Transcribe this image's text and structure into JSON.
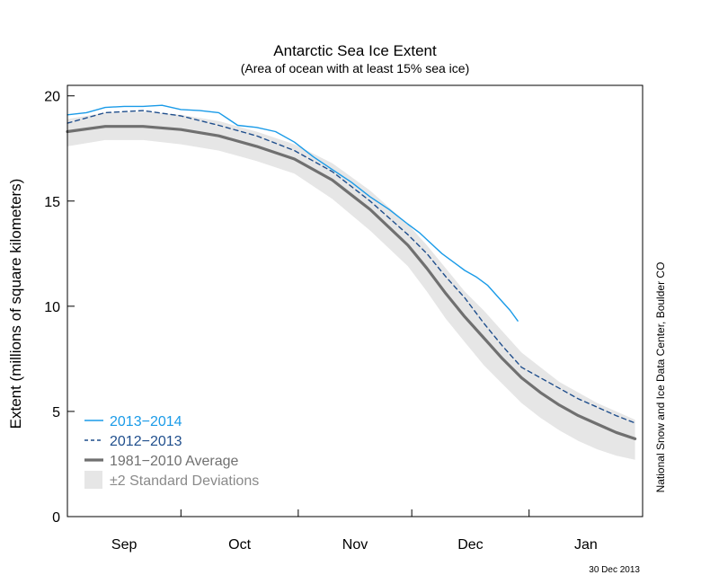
{
  "chart_data": {
    "type": "line",
    "title": "Antarctic Sea Ice Extent",
    "subtitle": "(Area of ocean with at least 15% sea ice)",
    "ylabel": "Extent (millions of square kilometers)",
    "xlabel": "",
    "ylim": [
      0,
      20.5
    ],
    "y_ticks": [
      0,
      5,
      10,
      15,
      20
    ],
    "x_range": [
      "2013-09-01",
      "2014-01-31"
    ],
    "months": [
      "Sep",
      "Oct",
      "Nov",
      "Dec",
      "Jan"
    ],
    "month_starts": [
      "2013-09-01",
      "2013-10-01",
      "2013-11-01",
      "2013-12-01",
      "2014-01-01"
    ],
    "grid": false,
    "legend_position": "bottom-left",
    "credit": "National Snow and Ice Data Center, Boulder CO",
    "date_stamp": "30 Dec 2013",
    "series": [
      {
        "name": "2013−2014",
        "style": "solid-thin",
        "color": "#1a9be8",
        "x": [
          "2013-09-01",
          "2013-09-06",
          "2013-09-11",
          "2013-09-16",
          "2013-09-21",
          "2013-09-26",
          "2013-10-01",
          "2013-10-06",
          "2013-10-11",
          "2013-10-16",
          "2013-10-21",
          "2013-10-26",
          "2013-10-31",
          "2013-11-05",
          "2013-11-10",
          "2013-11-15",
          "2013-11-20",
          "2013-11-25",
          "2013-11-30",
          "2013-12-03",
          "2013-12-06",
          "2013-12-09",
          "2013-12-12",
          "2013-12-15",
          "2013-12-18",
          "2013-12-21",
          "2013-12-24",
          "2013-12-27",
          "2013-12-29"
        ],
        "values": [
          19.1,
          19.2,
          19.45,
          19.5,
          19.5,
          19.55,
          19.35,
          19.3,
          19.2,
          18.6,
          18.5,
          18.3,
          17.8,
          17.1,
          16.5,
          15.9,
          15.2,
          14.6,
          13.9,
          13.5,
          13.0,
          12.5,
          12.1,
          11.7,
          11.4,
          11.0,
          10.4,
          9.8,
          9.3
        ]
      },
      {
        "name": "2012−2013",
        "style": "dashed",
        "color": "#1f4e8c",
        "x": [
          "2013-09-01",
          "2013-09-11",
          "2013-09-21",
          "2013-10-01",
          "2013-10-11",
          "2013-10-21",
          "2013-10-31",
          "2013-11-10",
          "2013-11-20",
          "2013-11-30",
          "2013-12-05",
          "2013-12-10",
          "2013-12-15",
          "2013-12-20",
          "2013-12-25",
          "2013-12-30",
          "2014-01-04",
          "2014-01-09",
          "2014-01-14",
          "2014-01-19",
          "2014-01-24",
          "2014-01-29"
        ],
        "values": [
          18.7,
          19.2,
          19.3,
          19.05,
          18.6,
          18.1,
          17.4,
          16.4,
          15.0,
          13.4,
          12.5,
          11.4,
          10.4,
          9.2,
          8.1,
          7.1,
          6.6,
          6.1,
          5.6,
          5.2,
          4.8,
          4.45
        ]
      },
      {
        "name": "1981−2010 Average",
        "style": "solid-thick",
        "color": "#707070",
        "x": [
          "2013-09-01",
          "2013-09-11",
          "2013-09-21",
          "2013-10-01",
          "2013-10-11",
          "2013-10-21",
          "2013-10-31",
          "2013-11-10",
          "2013-11-20",
          "2013-11-30",
          "2013-12-05",
          "2013-12-10",
          "2013-12-15",
          "2013-12-20",
          "2013-12-25",
          "2013-12-30",
          "2014-01-04",
          "2014-01-09",
          "2014-01-14",
          "2014-01-19",
          "2014-01-24",
          "2014-01-29"
        ],
        "values": [
          18.3,
          18.55,
          18.55,
          18.4,
          18.1,
          17.6,
          17.0,
          16.0,
          14.6,
          12.9,
          11.8,
          10.6,
          9.5,
          8.5,
          7.5,
          6.6,
          5.9,
          5.3,
          4.8,
          4.4,
          4.0,
          3.7
        ]
      },
      {
        "name": "±2 Standard Deviations",
        "style": "band",
        "color": "#e6e6e6",
        "x": [
          "2013-09-01",
          "2013-09-11",
          "2013-09-21",
          "2013-10-01",
          "2013-10-11",
          "2013-10-21",
          "2013-10-31",
          "2013-11-10",
          "2013-11-20",
          "2013-11-30",
          "2013-12-05",
          "2013-12-10",
          "2013-12-15",
          "2013-12-20",
          "2013-12-25",
          "2013-12-30",
          "2014-01-04",
          "2014-01-09",
          "2014-01-14",
          "2014-01-19",
          "2014-01-24",
          "2014-01-29"
        ],
        "upper": [
          18.9,
          19.2,
          19.25,
          19.1,
          18.8,
          18.3,
          17.7,
          16.8,
          15.5,
          13.9,
          12.9,
          11.8,
          10.7,
          9.8,
          8.8,
          7.8,
          7.1,
          6.4,
          5.9,
          5.4,
          5.0,
          4.6
        ],
        "lower": [
          17.6,
          17.9,
          17.9,
          17.7,
          17.4,
          16.9,
          16.3,
          15.1,
          13.6,
          11.9,
          10.7,
          9.4,
          8.3,
          7.2,
          6.3,
          5.4,
          4.7,
          4.1,
          3.6,
          3.2,
          2.9,
          2.7
        ]
      }
    ]
  }
}
